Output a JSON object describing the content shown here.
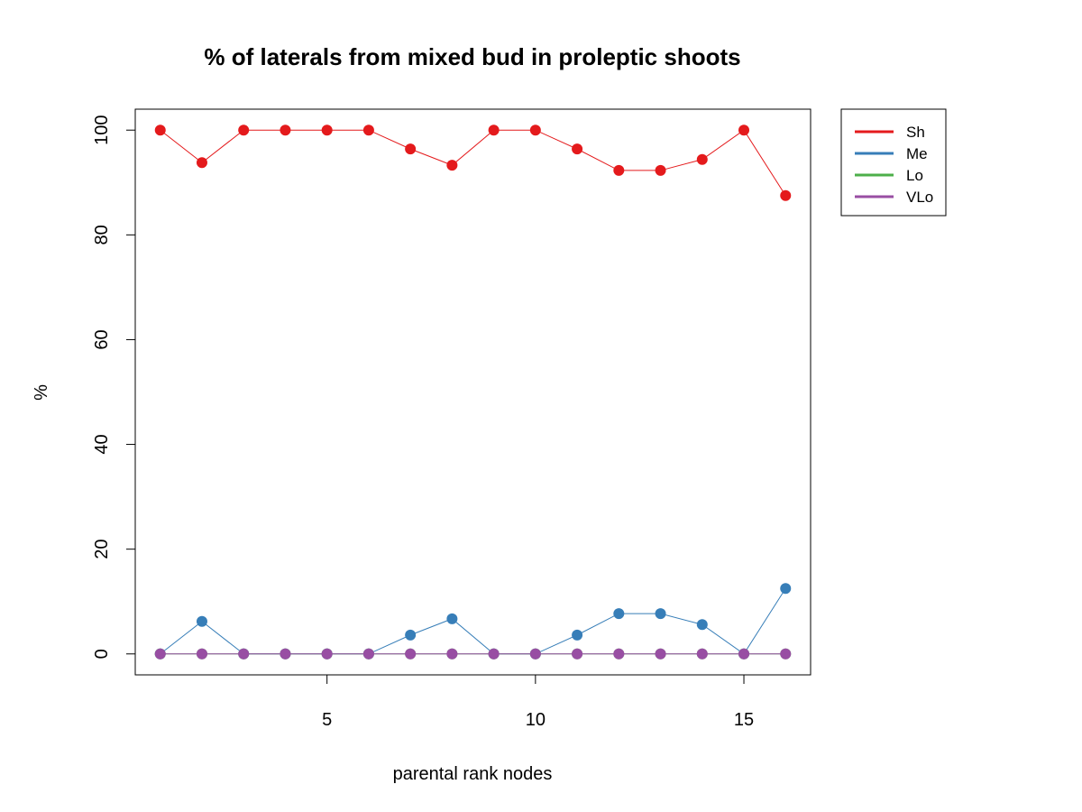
{
  "chart_data": {
    "type": "line",
    "title": "% of laterals from mixed bud in proleptic shoots",
    "xlabel": "parental rank nodes",
    "ylabel": "%",
    "x": [
      1,
      2,
      3,
      4,
      5,
      6,
      7,
      8,
      9,
      10,
      11,
      12,
      13,
      14,
      15,
      16
    ],
    "xlim": [
      0.4,
      16.6
    ],
    "ylim": [
      -4,
      104
    ],
    "xticks": [
      5,
      10,
      15
    ],
    "yticks": [
      0,
      20,
      40,
      60,
      80,
      100
    ],
    "grid": false,
    "legend_position": "top-right, outside plot",
    "series": [
      {
        "name": "Sh",
        "color": "#E41A1C",
        "values": [
          100,
          93.8,
          100,
          100,
          100,
          100,
          96.4,
          93.3,
          100,
          100,
          96.4,
          92.3,
          92.3,
          94.4,
          100,
          87.5
        ]
      },
      {
        "name": "Me",
        "color": "#377EB8",
        "values": [
          0,
          6.2,
          0,
          0,
          0,
          0,
          3.6,
          6.7,
          0,
          0,
          3.6,
          7.7,
          7.7,
          5.6,
          0,
          12.5
        ]
      },
      {
        "name": "Lo",
        "color": "#4DAF4A",
        "values": [
          0,
          0,
          0,
          0,
          0,
          0,
          0,
          0,
          0,
          0,
          0,
          0,
          0,
          0,
          0,
          0
        ]
      },
      {
        "name": "VLo",
        "color": "#984EA3",
        "values": [
          0,
          0,
          0,
          0,
          0,
          0,
          0,
          0,
          0,
          0,
          0,
          0,
          0,
          0,
          0,
          0
        ]
      }
    ]
  }
}
